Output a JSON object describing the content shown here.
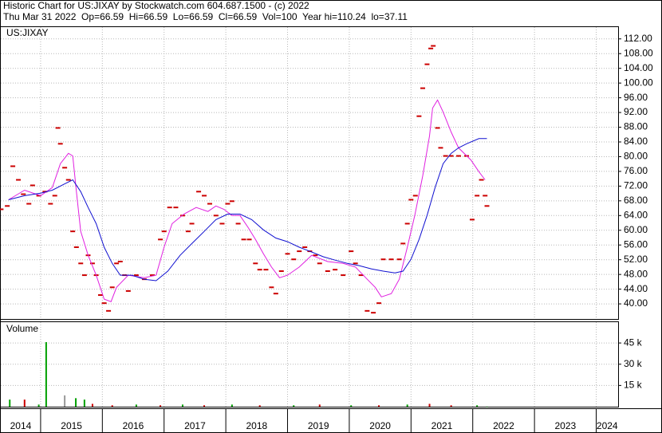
{
  "header": {
    "title": "Historic Chart for US:JIXAY by Stockwatch.com 604.687.1500 - (c) 2022",
    "info": "Thu Mar 31 2022  Op=66.59  Hi=66.59  Lo=66.59  Cl=66.59  Vol=100  Year hi=110.24  lo=37.11"
  },
  "chart_data": [
    {
      "type": "stock",
      "label": "US:JIXAY",
      "xlim": [
        2014.355,
        2024.355
      ],
      "xticks": [
        2015,
        2016,
        2017,
        2018,
        2019,
        2020,
        2021,
        2022,
        2023,
        2024
      ],
      "ylim": [
        35.9,
        115.2
      ],
      "yticks": [
        {
          "value": 40,
          "label": "40.00"
        },
        {
          "value": 44,
          "label": "44.00"
        },
        {
          "value": 48,
          "label": "48.00"
        },
        {
          "value": 52,
          "label": "52.00"
        },
        {
          "value": 56,
          "label": "56.00"
        },
        {
          "value": 60,
          "label": "60.00"
        },
        {
          "value": 64,
          "label": "64.00"
        },
        {
          "value": 68,
          "label": "68.00"
        },
        {
          "value": 72,
          "label": "72.00"
        },
        {
          "value": 76,
          "label": "76.00"
        },
        {
          "value": 80,
          "label": "80.00"
        },
        {
          "value": 84,
          "label": "84.00"
        },
        {
          "value": 88,
          "label": "88.00"
        },
        {
          "value": 92,
          "label": "92.00"
        },
        {
          "value": 96,
          "label": "96.00"
        },
        {
          "value": 100,
          "label": "100.00"
        },
        {
          "value": 104,
          "label": "104.00"
        },
        {
          "value": 108,
          "label": "108.00"
        },
        {
          "value": 112,
          "label": "112.00"
        }
      ],
      "grid": true,
      "series": [
        {
          "mark": "dash",
          "color": "#cc0000",
          "x": [
            2014.36,
            2014.46,
            2014.55,
            2014.64,
            2014.72,
            2014.81,
            2014.87,
            2014.97,
            2015.07,
            2015.16,
            2015.23,
            2015.28,
            2015.32,
            2015.39,
            2015.45,
            2015.52,
            2015.58,
            2015.65,
            2015.71,
            2015.77,
            2015.84,
            2015.9,
            2015.97,
            2016.03,
            2016.1,
            2016.16,
            2016.23,
            2016.29,
            2016.36,
            2016.42,
            2016.55,
            2016.68,
            2016.81,
            2016.94,
            2017.0,
            2017.09,
            2017.19,
            2017.3,
            2017.39,
            2017.45,
            2017.56,
            2017.65,
            2017.74,
            2017.84,
            2017.94,
            2018.03,
            2018.1,
            2018.2,
            2018.29,
            2018.38,
            2018.48,
            2018.55,
            2018.65,
            2018.74,
            2018.81,
            2018.9,
            2019.0,
            2019.1,
            2019.19,
            2019.28,
            2019.36,
            2019.45,
            2019.52,
            2019.65,
            2019.77,
            2019.9,
            2020.03,
            2020.1,
            2020.19,
            2020.29,
            2020.39,
            2020.48,
            2020.55,
            2020.68,
            2020.81,
            2020.87,
            2020.94,
            2021.0,
            2021.07,
            2021.13,
            2021.19,
            2021.26,
            2021.32,
            2021.36,
            2021.43,
            2021.48,
            2021.56,
            2021.65,
            2021.77,
            2021.9,
            2021.99,
            2022.07,
            2022.14,
            2022.2,
            2022.23
          ],
          "values": [
            65.7,
            66.6,
            77.4,
            73.7,
            69.8,
            67.2,
            72.2,
            69.4,
            70.5,
            67.2,
            69.4,
            87.8,
            83.5,
            77.0,
            73.7,
            59.7,
            55.4,
            51.0,
            47.8,
            53.2,
            51.0,
            47.8,
            42.4,
            40.2,
            38.1,
            44.5,
            51.0,
            51.5,
            47.8,
            43.5,
            47.8,
            46.7,
            47.8,
            57.5,
            59.7,
            66.2,
            66.2,
            64.0,
            59.7,
            61.8,
            70.5,
            69.4,
            67.2,
            64.0,
            61.8,
            67.2,
            67.9,
            61.8,
            57.5,
            57.5,
            51.0,
            49.3,
            49.3,
            44.5,
            42.8,
            48.9,
            53.6,
            52.1,
            54.3,
            55.4,
            54.3,
            53.2,
            51.0,
            48.9,
            49.3,
            47.8,
            54.3,
            51.0,
            47.8,
            38.1,
            37.6,
            40.2,
            52.1,
            52.1,
            52.1,
            56.4,
            61.8,
            68.3,
            69.4,
            91.0,
            98.6,
            105.1,
            109.4,
            110.1,
            87.8,
            82.4,
            80.2,
            80.2,
            80.2,
            80.2,
            62.9,
            69.4,
            73.7,
            69.4,
            66.6
          ]
        },
        {
          "mark": "line",
          "color": "#e020e0",
          "x": [
            2014.48,
            2014.74,
            2015.0,
            2015.19,
            2015.32,
            2015.45,
            2015.52,
            2015.58,
            2015.65,
            2015.77,
            2015.9,
            2016.03,
            2016.14,
            2016.23,
            2016.42,
            2016.68,
            2016.87,
            2017.0,
            2017.13,
            2017.32,
            2017.52,
            2017.71,
            2017.84,
            2017.97,
            2018.1,
            2018.23,
            2018.36,
            2018.48,
            2018.61,
            2018.74,
            2018.87,
            2019.0,
            2019.19,
            2019.39,
            2019.65,
            2019.9,
            2020.1,
            2020.29,
            2020.42,
            2020.52,
            2020.68,
            2020.81,
            2020.94,
            2021.06,
            2021.19,
            2021.3,
            2021.35,
            2021.43,
            2021.52,
            2021.65,
            2021.77,
            2021.97,
            2022.1,
            2022.2
          ],
          "values": [
            68.3,
            70.9,
            69.4,
            71.6,
            78.1,
            80.9,
            80.2,
            70.5,
            59.7,
            53.2,
            47.8,
            41.3,
            40.6,
            44.5,
            47.8,
            47.1,
            47.8,
            55.4,
            61.8,
            64.4,
            66.2,
            65.1,
            66.6,
            65.7,
            64.0,
            64.0,
            60.8,
            57.5,
            53.6,
            50.0,
            47.1,
            47.8,
            50.0,
            53.2,
            51.5,
            51.0,
            50.0,
            46.7,
            44.5,
            41.9,
            42.8,
            46.7,
            55.4,
            64.0,
            74.8,
            85.6,
            93.2,
            95.4,
            92.1,
            86.7,
            82.4,
            79.1,
            75.9,
            73.7
          ]
        },
        {
          "mark": "line",
          "color": "#1010d0",
          "x": [
            2014.48,
            2014.74,
            2015.0,
            2015.19,
            2015.39,
            2015.52,
            2015.65,
            2015.77,
            2015.9,
            2016.03,
            2016.16,
            2016.29,
            2016.48,
            2016.68,
            2016.87,
            2017.06,
            2017.26,
            2017.45,
            2017.65,
            2017.84,
            2018.03,
            2018.23,
            2018.42,
            2018.61,
            2018.81,
            2019.0,
            2019.19,
            2019.39,
            2019.58,
            2019.77,
            2019.97,
            2020.16,
            2020.36,
            2020.55,
            2020.74,
            2020.87,
            2021.0,
            2021.13,
            2021.26,
            2021.39,
            2021.52,
            2021.65,
            2021.77,
            2021.9,
            2022.1,
            2022.23
          ],
          "values": [
            68.3,
            69.4,
            70.1,
            70.9,
            72.6,
            73.7,
            70.5,
            66.2,
            61.8,
            55.4,
            51.0,
            47.8,
            47.8,
            46.7,
            46.3,
            48.9,
            53.2,
            56.4,
            59.7,
            62.9,
            64.4,
            64.4,
            62.9,
            60.1,
            57.9,
            56.9,
            55.4,
            54.1,
            52.8,
            51.9,
            51.0,
            50.4,
            49.5,
            48.9,
            48.4,
            48.9,
            52.1,
            57.5,
            64.0,
            71.6,
            78.1,
            80.9,
            82.4,
            83.5,
            84.9,
            84.9
          ]
        }
      ]
    },
    {
      "type": "bar",
      "label": "Volume",
      "xlim": [
        2014.355,
        2024.355
      ],
      "xticks": [
        2014,
        2015,
        2016,
        2017,
        2018,
        2019,
        2020,
        2021,
        2022,
        2023,
        2024
      ],
      "ylim": [
        0,
        59700
      ],
      "yticks": [
        {
          "value": 15000,
          "label": "15 k"
        },
        {
          "value": 30000,
          "label": "30 k"
        },
        {
          "value": 45000,
          "label": "45 k"
        }
      ],
      "grid": true,
      "x": [
        2014.5,
        2014.74,
        2014.97,
        2015.09,
        2015.39,
        2015.57,
        2015.71,
        2015.84,
        2016.16,
        2016.55,
        2016.94,
        2017.3,
        2017.65,
        2018.1,
        2018.55,
        2019.1,
        2019.52,
        2020.03,
        2020.48,
        2020.94,
        2021.3,
        2021.65,
        2022.07,
        2022.23
      ],
      "values": [
        5000,
        5000,
        1500,
        45600,
        8000,
        6000,
        5000,
        2000,
        1000,
        1500,
        1000,
        1500,
        1000,
        1500,
        1000,
        1000,
        1500,
        1000,
        1000,
        1500,
        2000,
        1000,
        1000,
        100
      ],
      "colors": [
        "#00a000",
        "#cc0000",
        "#00a000",
        "#00a000",
        "#999999",
        "#00a000",
        "#00a000",
        "#cc0000",
        "#cc0000",
        "#00a000",
        "#cc0000",
        "#00a000",
        "#cc0000",
        "#00a000",
        "#cc0000",
        "#00a000",
        "#cc0000",
        "#00a000",
        "#cc0000",
        "#00a000",
        "#cc0000",
        "#cc0000",
        "#00a000",
        "#00a000"
      ]
    }
  ]
}
